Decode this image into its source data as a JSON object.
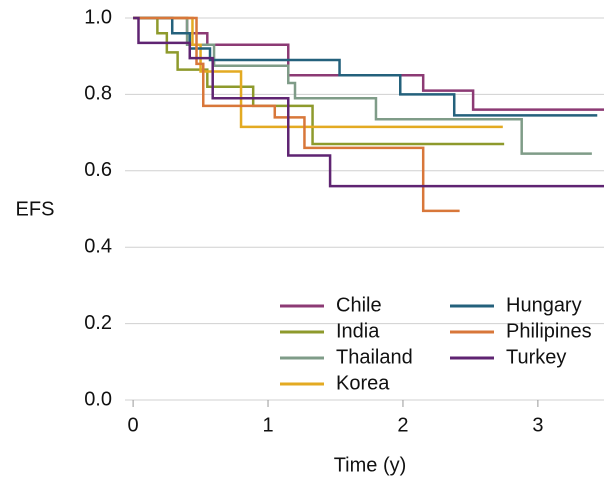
{
  "chart_data": {
    "type": "step",
    "x_label": "Time (y)",
    "y_label": "EFS",
    "xlim": [
      -0.06,
      3.49
    ],
    "ylim": [
      0,
      1
    ],
    "xticks": [
      0,
      1,
      2,
      3
    ],
    "yticks": [
      {
        "value": 0,
        "label": "0.0"
      },
      0.2,
      0.4,
      0.6,
      0.8,
      {
        "value": 1,
        "label": "1.0"
      }
    ],
    "grid": true,
    "legend": "bottom-right",
    "series": [
      {
        "name": "Chile",
        "color": "#8c3a74",
        "x": [
          0,
          0.4,
          0.55,
          1.15,
          2.15,
          2.52,
          3.49
        ],
        "values": [
          1,
          0.96,
          0.93,
          0.85,
          0.81,
          0.76,
          0.76
        ]
      },
      {
        "name": "India",
        "color": "#8e9a2c",
        "x": [
          0,
          0.18,
          0.25,
          0.33,
          0.55,
          0.89,
          1.33,
          2.75
        ],
        "values": [
          1,
          0.96,
          0.91,
          0.865,
          0.82,
          0.77,
          0.67,
          0.67
        ]
      },
      {
        "name": "Thailand",
        "color": "#7f9c88",
        "x": [
          0,
          0.4,
          0.6,
          1.15,
          1.2,
          1.8,
          2.88,
          3.4
        ],
        "values": [
          1,
          0.93,
          0.875,
          0.83,
          0.79,
          0.735,
          0.645,
          0.645
        ]
      },
      {
        "name": "Korea",
        "color": "#e3aa22",
        "x": [
          0,
          0.44,
          0.5,
          0.8,
          2.74
        ],
        "values": [
          1,
          0.93,
          0.86,
          0.715,
          0.715
        ]
      },
      {
        "name": "Hungary",
        "color": "#24617c",
        "x": [
          0,
          0.29,
          0.42,
          0.57,
          1.53,
          1.98,
          2.38,
          3.44
        ],
        "values": [
          1,
          0.96,
          0.92,
          0.89,
          0.85,
          0.8,
          0.745,
          0.745
        ]
      },
      {
        "name": "Philipines",
        "color": "#d8773a",
        "x": [
          0,
          0.47,
          0.52,
          1.05,
          1.27,
          2.15,
          2.42
        ],
        "values": [
          1,
          0.88,
          0.77,
          0.74,
          0.66,
          0.495,
          0.495
        ]
      },
      {
        "name": "Turkey",
        "color": "#5f2472",
        "x": [
          0,
          0.04,
          0.42,
          0.59,
          1.15,
          1.46,
          3.49
        ],
        "values": [
          1,
          0.935,
          0.895,
          0.79,
          0.64,
          0.56,
          0.56
        ]
      }
    ]
  }
}
